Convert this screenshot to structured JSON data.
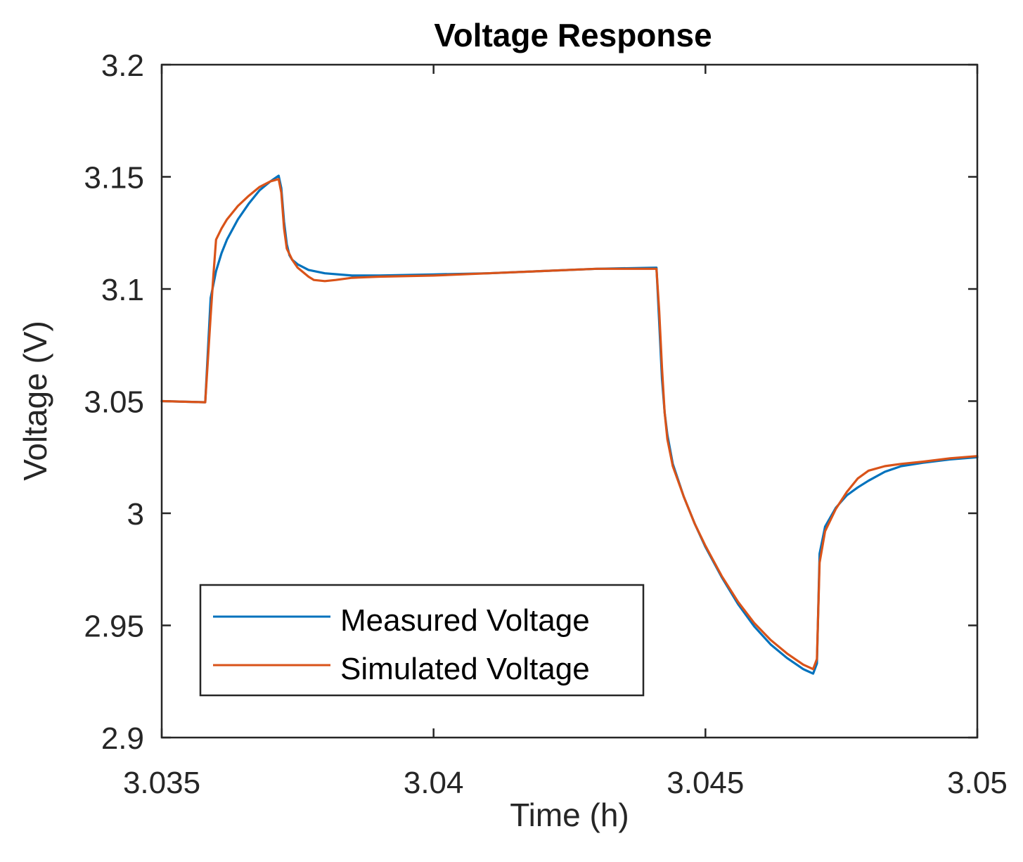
{
  "chart_data": {
    "type": "line",
    "title": "Voltage Response",
    "xlabel": "Time (h)",
    "ylabel": "Voltage (V)",
    "xlim": [
      3.035,
      3.05
    ],
    "ylim": [
      2.9,
      3.2
    ],
    "xticks": [
      3.035,
      3.04,
      3.045,
      3.05
    ],
    "xtick_labels": [
      "3.035",
      "3.04",
      "3.045",
      "3.05"
    ],
    "yticks": [
      2.9,
      2.95,
      3.0,
      3.05,
      3.1,
      3.15,
      3.2
    ],
    "ytick_labels": [
      "2.9",
      "2.95",
      "3",
      "3.05",
      "3.1",
      "3.15",
      "3.2"
    ],
    "grid": false,
    "legend_position": "bottom-left",
    "series": [
      {
        "name": "Measured Voltage",
        "color": "#0072BD",
        "x": [
          3.035,
          3.0358,
          3.0359,
          3.03595,
          3.036,
          3.0361,
          3.0362,
          3.0364,
          3.0366,
          3.0368,
          3.037,
          3.03715,
          3.0372,
          3.03725,
          3.0373,
          3.03735,
          3.0374,
          3.0375,
          3.0377,
          3.038,
          3.0385,
          3.039,
          3.04,
          3.041,
          3.042,
          3.043,
          3.0441,
          3.04415,
          3.0442,
          3.04425,
          3.0443,
          3.0444,
          3.0446,
          3.0448,
          3.045,
          3.0453,
          3.0456,
          3.0459,
          3.0462,
          3.0465,
          3.0468,
          3.04698,
          3.04705,
          3.0471,
          3.0472,
          3.0474,
          3.0476,
          3.0478,
          3.048,
          3.0483,
          3.0486,
          3.049,
          3.0495,
          3.05
        ],
        "y": [
          3.05,
          3.0495,
          3.096,
          3.102,
          3.108,
          3.116,
          3.122,
          3.131,
          3.138,
          3.144,
          3.148,
          3.1505,
          3.145,
          3.13,
          3.12,
          3.115,
          3.113,
          3.111,
          3.1085,
          3.107,
          3.106,
          3.106,
          3.1065,
          3.107,
          3.108,
          3.109,
          3.1095,
          3.085,
          3.06,
          3.045,
          3.035,
          3.022,
          3.0075,
          2.9955,
          2.985,
          2.9715,
          2.9595,
          2.9495,
          2.9415,
          2.9355,
          2.9305,
          2.9285,
          2.933,
          2.982,
          2.994,
          3.0025,
          3.008,
          3.0115,
          3.0145,
          3.0185,
          3.021,
          3.0225,
          3.024,
          3.025
        ]
      },
      {
        "name": "Simulated Voltage",
        "color": "#D95319",
        "x": [
          3.035,
          3.0358,
          3.0359,
          3.03595,
          3.036,
          3.0361,
          3.0362,
          3.0364,
          3.0366,
          3.0368,
          3.037,
          3.03715,
          3.0372,
          3.03725,
          3.0373,
          3.0374,
          3.0375,
          3.0376,
          3.0377,
          3.0378,
          3.038,
          3.0382,
          3.0385,
          3.039,
          3.04,
          3.041,
          3.042,
          3.043,
          3.0441,
          3.04415,
          3.0442,
          3.04425,
          3.0443,
          3.0444,
          3.0446,
          3.0448,
          3.045,
          3.0453,
          3.0456,
          3.0459,
          3.0462,
          3.0465,
          3.0468,
          3.04698,
          3.04705,
          3.0471,
          3.0472,
          3.0474,
          3.0476,
          3.0478,
          3.048,
          3.0483,
          3.0486,
          3.049,
          3.0495,
          3.05
        ],
        "y": [
          3.05,
          3.0495,
          3.088,
          3.106,
          3.122,
          3.127,
          3.131,
          3.137,
          3.1415,
          3.1455,
          3.148,
          3.149,
          3.143,
          3.127,
          3.118,
          3.113,
          3.1095,
          3.1075,
          3.1055,
          3.104,
          3.1035,
          3.104,
          3.105,
          3.1055,
          3.106,
          3.107,
          3.108,
          3.109,
          3.109,
          3.09,
          3.065,
          3.045,
          3.033,
          3.021,
          3.0075,
          2.9955,
          2.9855,
          2.972,
          2.9605,
          2.951,
          2.9435,
          2.9375,
          2.9325,
          2.9305,
          2.935,
          2.978,
          2.992,
          3.002,
          3.0095,
          3.0155,
          3.019,
          3.021,
          3.022,
          3.023,
          3.0245,
          3.0255
        ]
      }
    ]
  }
}
